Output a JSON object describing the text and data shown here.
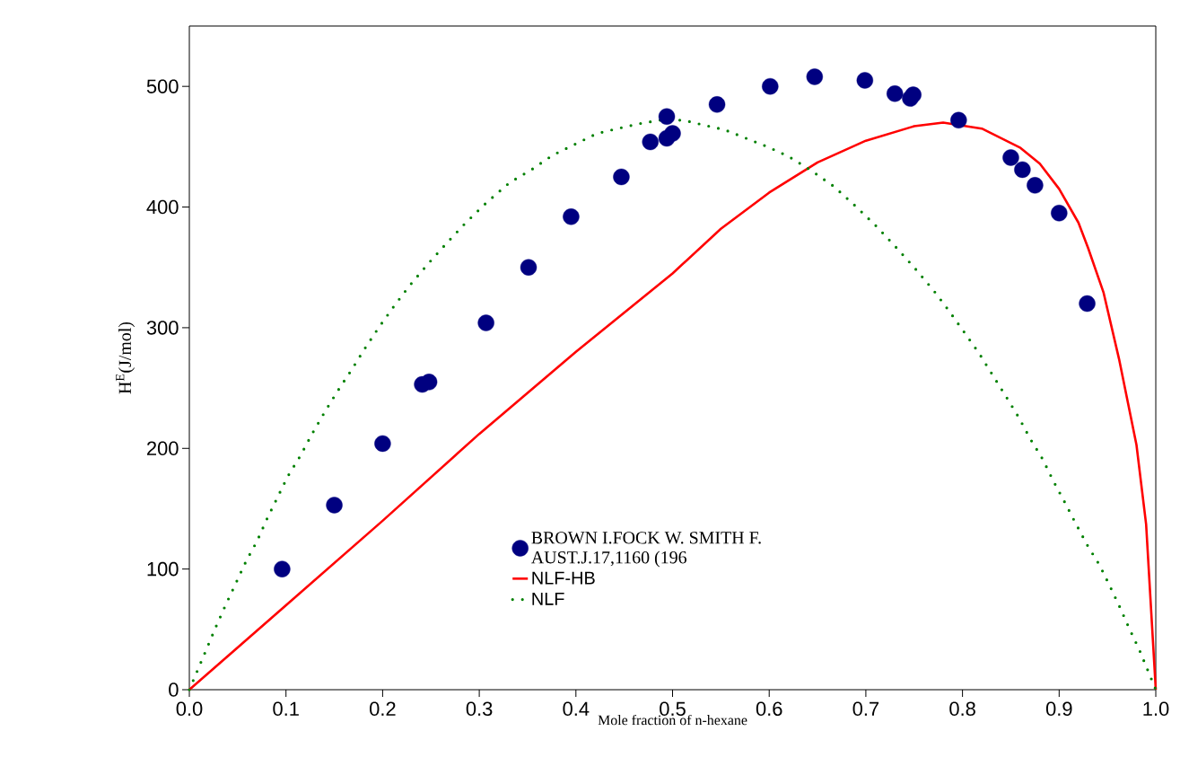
{
  "chart_data": {
    "type": "scatter",
    "xlabel": "Mole fraction of n-hexane",
    "ylabel": "H$^{E}$(J/mol)",
    "xlim": [
      0,
      1
    ],
    "ylim": [
      0,
      550
    ],
    "xticks": [
      {
        "value": 0,
        "label": "0.0"
      },
      0.1,
      0.2,
      0.3,
      0.4,
      0.5,
      0.6,
      0.7,
      0.8,
      0.9,
      {
        "value": 1,
        "label": "1.0"
      }
    ],
    "yticks": [
      0,
      100,
      200,
      300,
      400,
      500
    ],
    "grid": false,
    "legend": "bottom",
    "series": [
      {
        "name": "BROWN I.FOCK W. SMITH F. AUST.J.17,1160 (196",
        "type": "scatter",
        "marker": "circle",
        "color": "#000080",
        "x": [
          0.096,
          0.15,
          0.2,
          0.241,
          0.248,
          0.307,
          0.351,
          0.395,
          0.447,
          0.477,
          0.494,
          0.494,
          0.5,
          0.546,
          0.601,
          0.647,
          0.699,
          0.73,
          0.746,
          0.749,
          0.796,
          0.85,
          0.862,
          0.875,
          0.9,
          0.929
        ],
        "values": [
          100,
          153,
          204,
          253,
          255,
          304,
          350,
          392,
          425,
          454,
          475,
          457,
          461,
          485,
          500,
          508,
          505,
          494,
          490,
          493,
          472,
          441,
          431,
          418,
          395,
          320
        ]
      },
      {
        "name": "NLF-HB",
        "type": "line",
        "line_style": "solid",
        "marker": "none",
        "color": "#ff0000",
        "x": [
          0,
          0.1,
          0.2,
          0.3,
          0.4,
          0.5,
          0.55,
          0.6,
          0.65,
          0.7,
          0.75,
          0.78,
          0.82,
          0.86,
          0.88,
          0.9,
          0.92,
          0.93,
          0.946,
          0.962,
          0.98,
          0.99,
          1.0
        ],
        "values": [
          0,
          70,
          140,
          212,
          280,
          345,
          382,
          412,
          437,
          455,
          467,
          470,
          465,
          449,
          436,
          415,
          387,
          366,
          329,
          274,
          203,
          137,
          0
        ]
      },
      {
        "name": "NLF",
        "type": "line",
        "line_style": "dotted",
        "marker": "none",
        "color": "#008000",
        "x": [
          0,
          0.009,
          0.019,
          0.028,
          0.038,
          0.048,
          0.059,
          0.07,
          0.08,
          0.091,
          0.102,
          0.115,
          0.127,
          0.14,
          0.153,
          0.167,
          0.181,
          0.195,
          0.211,
          0.227,
          0.246,
          0.265,
          0.286,
          0.308,
          0.331,
          0.356,
          0.376,
          0.399,
          0.422,
          0.443,
          0.465,
          0.487,
          0.511,
          0.532,
          0.554,
          0.598,
          0.62,
          0.644,
          0.667,
          0.689,
          0.711,
          0.732,
          0.751,
          0.77,
          0.786,
          0.802,
          0.817,
          0.831,
          0.845,
          0.858,
          0.87,
          0.883,
          0.894,
          0.906,
          0.917,
          0.929,
          0.942,
          0.953,
          0.963,
          0.973,
          0.983,
          1.0
        ],
        "values": [
          0,
          17,
          36,
          53,
          71,
          88,
          107,
          123,
          141,
          159,
          177,
          194,
          212,
          230,
          247,
          264,
          282,
          299,
          317,
          334,
          352,
          369,
          387,
          404,
          420,
          432,
          443,
          452,
          461,
          465,
          469,
          472,
          472,
          468,
          464,
          450,
          442,
          430,
          417,
          401,
          384,
          366,
          349,
          331,
          314,
          296,
          279,
          261,
          243,
          226,
          208,
          191,
          173,
          155,
          138,
          120,
          103,
          85,
          68,
          50,
          33,
          0
        ]
      }
    ]
  }
}
